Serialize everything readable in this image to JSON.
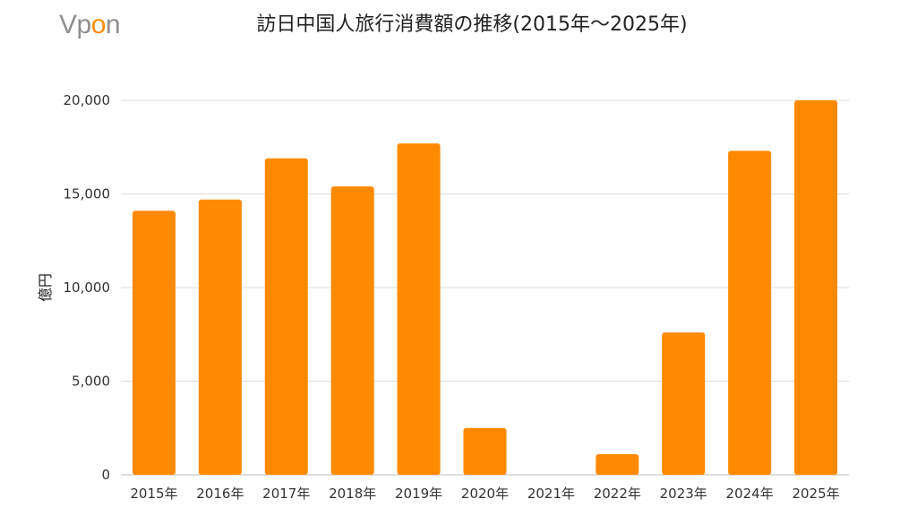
{
  "brand": {
    "logo_prefix": "Vp",
    "logo_accent": "o",
    "logo_suffix": "n",
    "accent_color": "#ff8a00",
    "logo_color": "#8f8f8f"
  },
  "chart_data": {
    "type": "bar",
    "title": "訪日中国人旅行消費額の推移(2015年～2025年)",
    "xlabel": "",
    "ylabel": "億円",
    "categories": [
      "2015年",
      "2016年",
      "2017年",
      "2018年",
      "2019年",
      "2020年",
      "2021年",
      "2022年",
      "2023年",
      "2024年",
      "2025年"
    ],
    "values": [
      14100,
      14700,
      16900,
      15400,
      17700,
      2500,
      0,
      1100,
      7600,
      17300,
      20000
    ],
    "ylim": [
      0,
      20000
    ],
    "yticks": [
      0,
      5000,
      10000,
      15000,
      20000
    ],
    "ytick_labels": [
      "0",
      "5,000",
      "10,000",
      "15,000",
      "20,000"
    ],
    "grid": true,
    "legend": "none",
    "bar_color": "#ff8a00",
    "grid_color": "#dcdcdc"
  }
}
